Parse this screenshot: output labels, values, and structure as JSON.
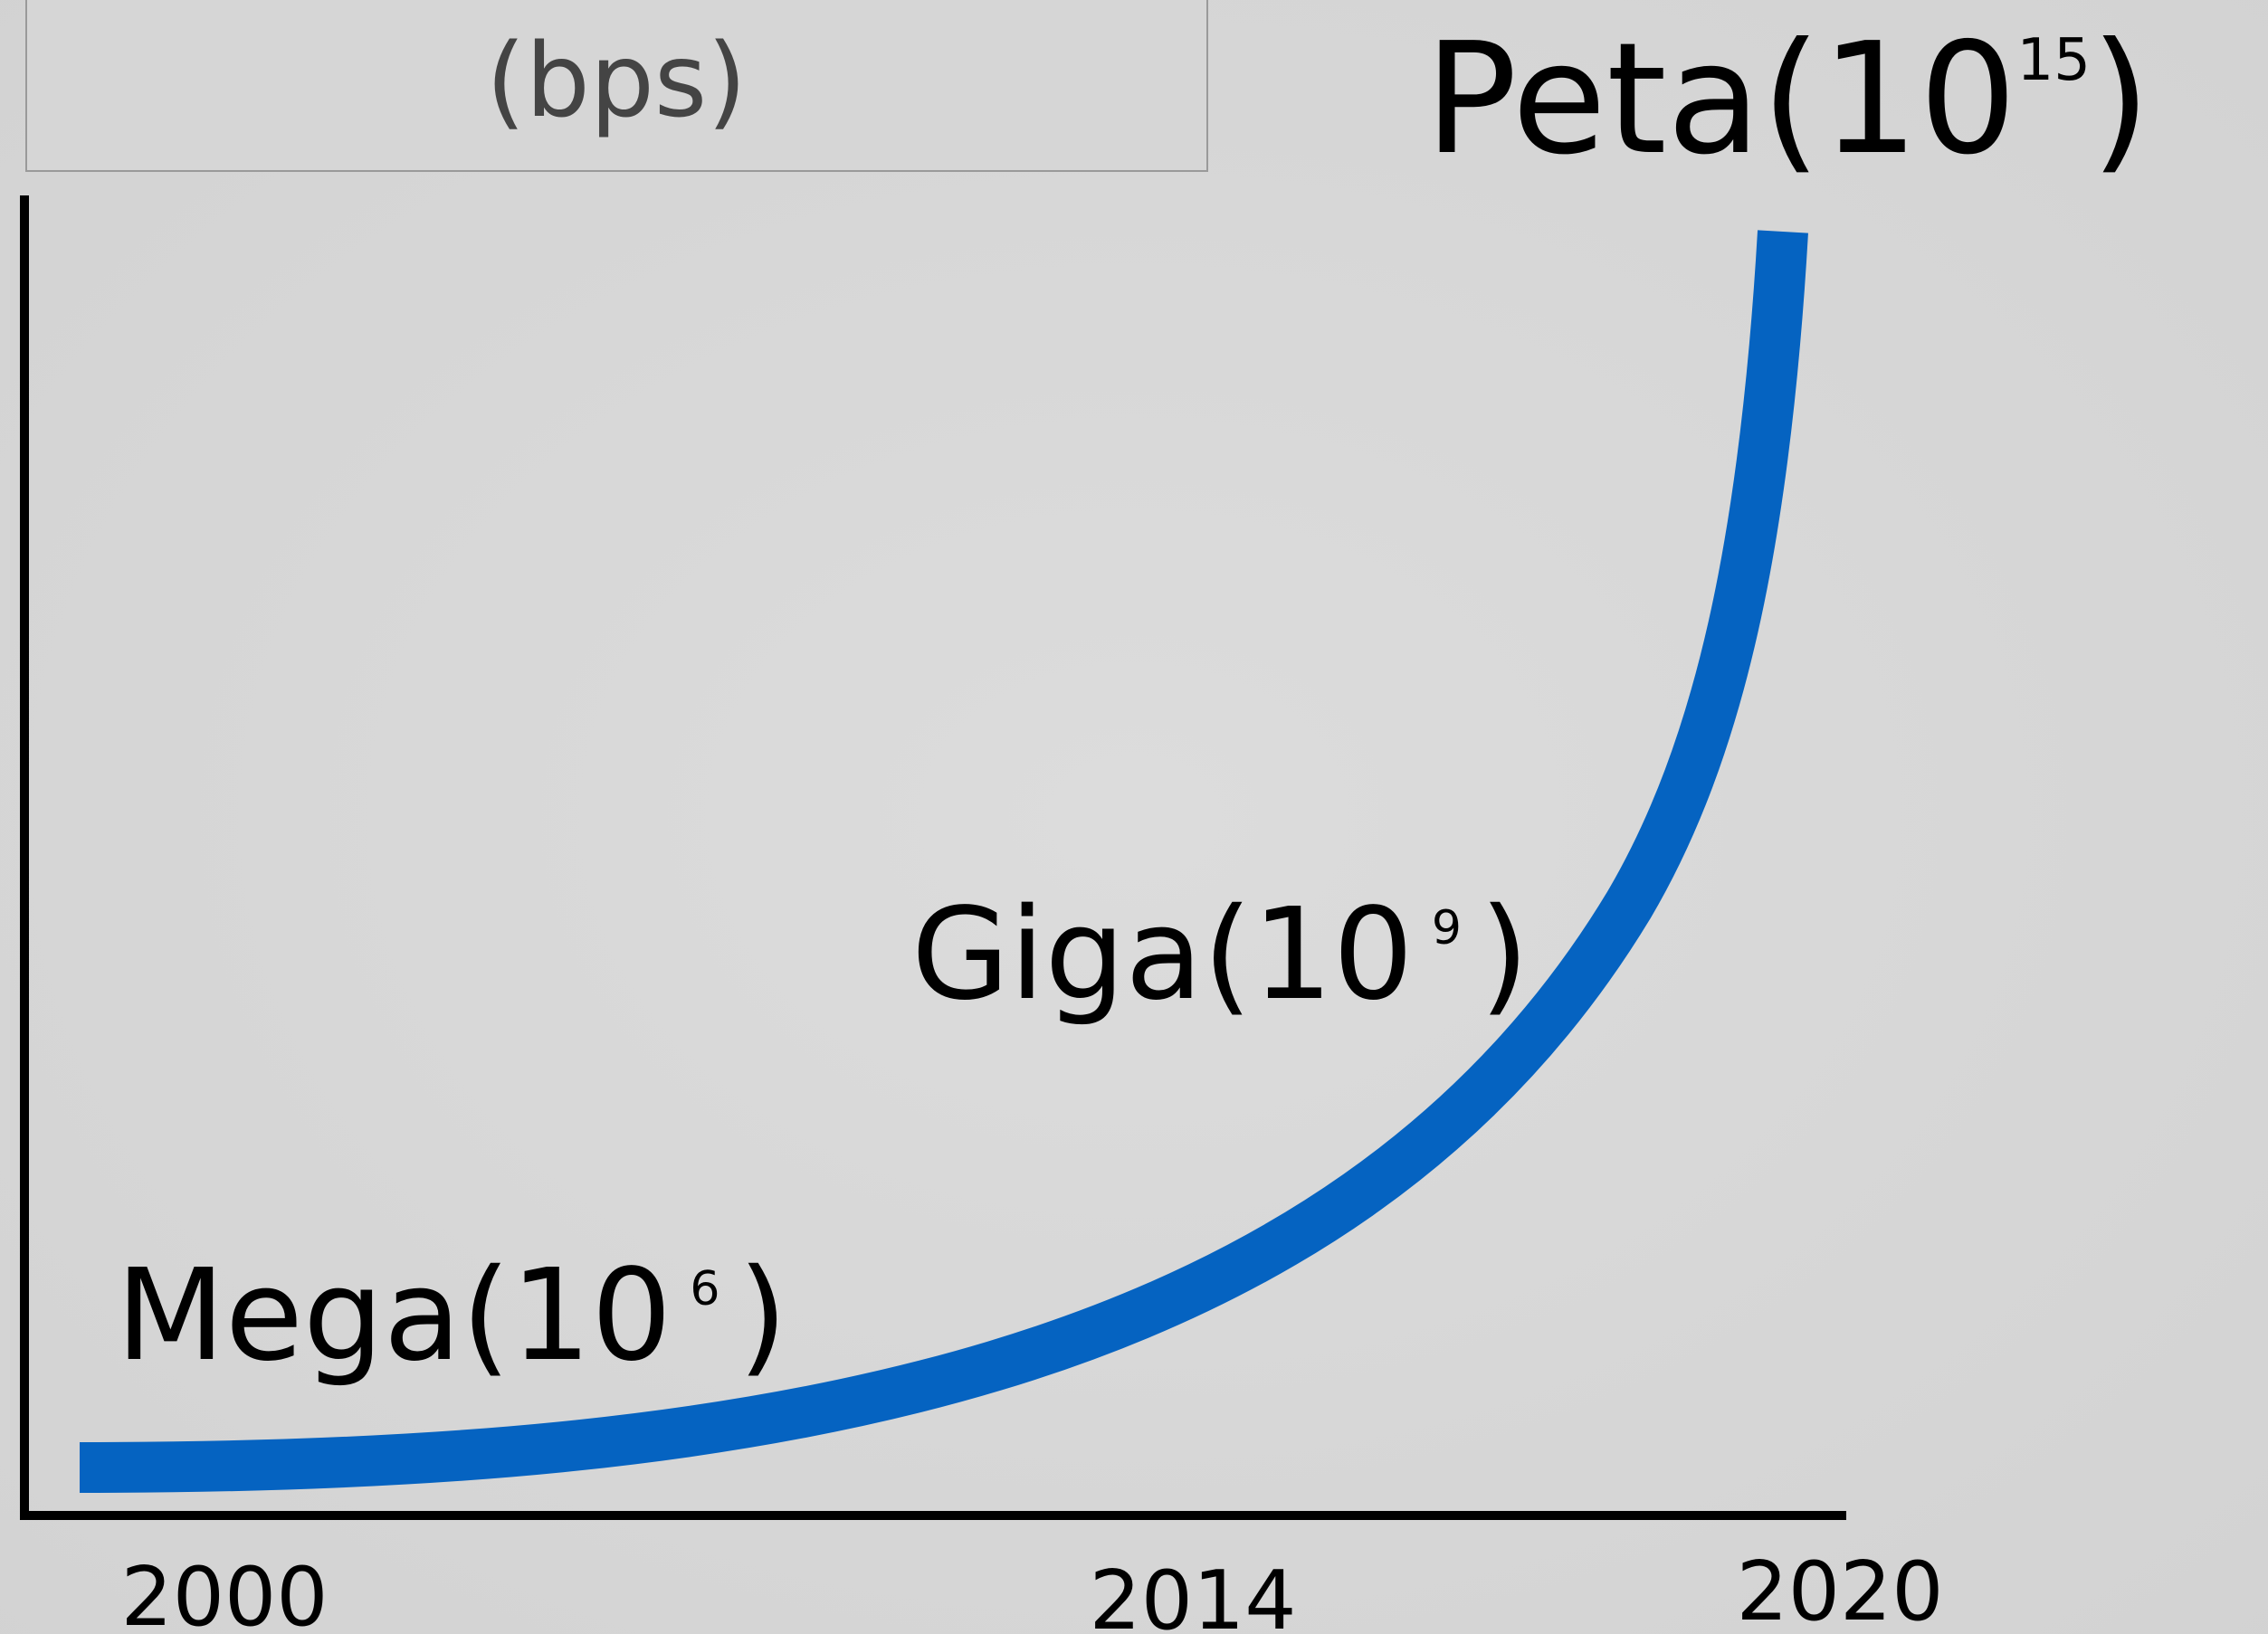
{
  "unit": "(bps)",
  "labels": [
    {
      "prefix": "Peta(10",
      "exponent": "15",
      "suffix": ")"
    },
    {
      "prefix": "Giga(10",
      "exponent": "9",
      "suffix": ")"
    },
    {
      "prefix": "Mega(10",
      "exponent": "6",
      "suffix": ")"
    }
  ],
  "years": [
    "2000",
    "2014",
    "2020"
  ]
}
